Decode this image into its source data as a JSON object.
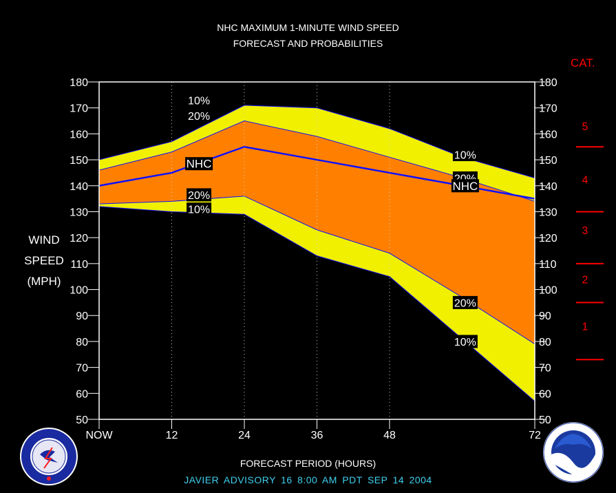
{
  "title_line1": "NHC MAXIMUM 1-MINUTE WIND SPEED",
  "title_line2": "FORECAST AND PROBABILITIES",
  "ylabel_lines": [
    "WIND",
    "SPEED",
    "(MPH)"
  ],
  "xlabel": "FORECAST PERIOD (HOURS)",
  "advisory": "JAVIER   ADVISORY  16 8:00  AM  PDT  SEP  14  2004",
  "category_title": "CAT.",
  "colors": {
    "background": "#000000",
    "outer_band": "#f0f000",
    "inner_band": "#ff8000",
    "forecast_line": "#1010ff",
    "category": "#ff0000",
    "advisory_text": "#40d0f0"
  },
  "chart_data": {
    "type": "area",
    "title": "NHC MAXIMUM 1-MINUTE WIND SPEED FORECAST AND PROBABILITIES",
    "xlabel": "FORECAST PERIOD (HOURS)",
    "ylabel": "WIND SPEED (MPH)",
    "x": [
      0,
      12,
      24,
      36,
      48,
      60,
      72
    ],
    "x_ticks": [
      0,
      12,
      24,
      36,
      48,
      72
    ],
    "x_tick_labels": [
      "NOW",
      "12",
      "24",
      "36",
      "48",
      "72"
    ],
    "xlim": [
      0,
      72
    ],
    "ylim": [
      50,
      180
    ],
    "y_ticks": [
      50,
      60,
      70,
      80,
      90,
      100,
      110,
      120,
      130,
      140,
      150,
      160,
      170,
      180
    ],
    "series": [
      {
        "name": "10%",
        "values": [
          150,
          157,
          171,
          170,
          162,
          151,
          143
        ]
      },
      {
        "name": "20%",
        "values": [
          146,
          153,
          165,
          159,
          151,
          143,
          134
        ]
      },
      {
        "name": "NHC",
        "values": [
          140,
          145,
          155,
          150,
          145,
          140,
          135
        ]
      },
      {
        "name": "20%",
        "values": [
          133,
          134,
          136,
          123,
          114,
          97,
          79
        ]
      },
      {
        "name": "10%",
        "values": [
          132,
          130,
          129,
          113,
          105,
          81,
          57
        ]
      }
    ],
    "annotations": [
      {
        "text": "10%",
        "x": 16.5,
        "y": 173
      },
      {
        "text": "20%",
        "x": 16.5,
        "y": 167
      },
      {
        "text": "NHC",
        "x": 16.5,
        "y": 148.5
      },
      {
        "text": "20%",
        "x": 16.5,
        "y": 136.5
      },
      {
        "text": "10%",
        "x": 16.5,
        "y": 131
      },
      {
        "text": "10%",
        "x": 60.5,
        "y": 152
      },
      {
        "text": "20%",
        "x": 60.5,
        "y": 143
      },
      {
        "text": "NHC",
        "x": 60.5,
        "y": 140
      },
      {
        "text": "20%",
        "x": 60.5,
        "y": 95
      },
      {
        "text": "10%",
        "x": 60.5,
        "y": 80
      }
    ],
    "categories": [
      {
        "label": "5",
        "y": 163
      },
      {
        "label": "4",
        "y": 142.5
      },
      {
        "label": "3",
        "y": 123
      },
      {
        "label": "2",
        "y": 104
      },
      {
        "label": "1",
        "y": 86
      }
    ],
    "category_boundaries": [
      155,
      130,
      110,
      95,
      73
    ],
    "grid": "vertical dotted",
    "legend": "inline labels"
  }
}
